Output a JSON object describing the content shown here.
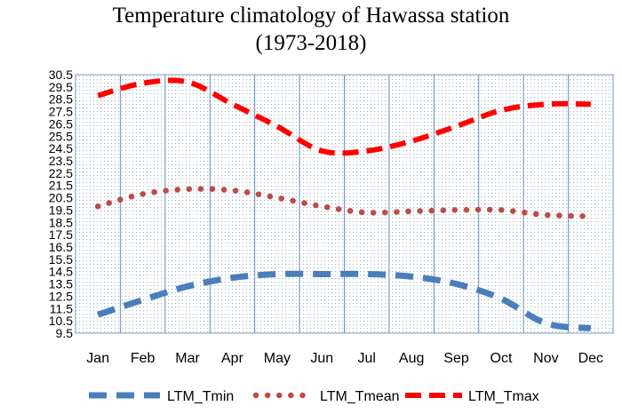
{
  "chart_data": {
    "type": "line",
    "title": "Temperature climatology  of Hawassa station",
    "subtitle": "(1973-2018)",
    "xlabel": "",
    "ylabel": "",
    "categories": [
      "Jan",
      "Feb",
      "Mar",
      "Apr",
      "May",
      "Jun",
      "Jul",
      "Aug",
      "Sep",
      "Oct",
      "Nov",
      "Dec"
    ],
    "ylim": [
      9.5,
      30.5
    ],
    "yticks": [
      "30.5",
      "29.5",
      "28.5",
      "27.5",
      "26.5",
      "25.5",
      "24.5",
      "23.5",
      "22.5",
      "21.5",
      "20.5",
      "19.5",
      "18.5",
      "17.5",
      "16.5",
      "15.5",
      "14.5",
      "13.5",
      "12.5",
      "11.5",
      "10.5",
      "9.5"
    ],
    "grid": "vertical lines with dotted plot background",
    "legend_position": "bottom",
    "series": [
      {
        "name": "LTM_Tmin",
        "color": "#4a7ebb",
        "style": "long-dash",
        "values": [
          11.0,
          12.2,
          13.3,
          14.0,
          14.3,
          14.3,
          14.3,
          14.1,
          13.5,
          12.3,
          10.3,
          9.9
        ]
      },
      {
        "name": "LTM_Tmean",
        "color": "#be4b48",
        "style": "round-dot",
        "values": [
          19.8,
          20.8,
          21.2,
          21.1,
          20.5,
          19.8,
          19.3,
          19.4,
          19.5,
          19.5,
          19.1,
          19.0
        ]
      },
      {
        "name": "LTM_Tmax",
        "color": "#ff0000",
        "style": "dash",
        "values": [
          28.8,
          29.8,
          29.9,
          28.1,
          26.3,
          24.3,
          24.3,
          25.1,
          26.3,
          27.6,
          28.1,
          28.1
        ]
      }
    ]
  }
}
